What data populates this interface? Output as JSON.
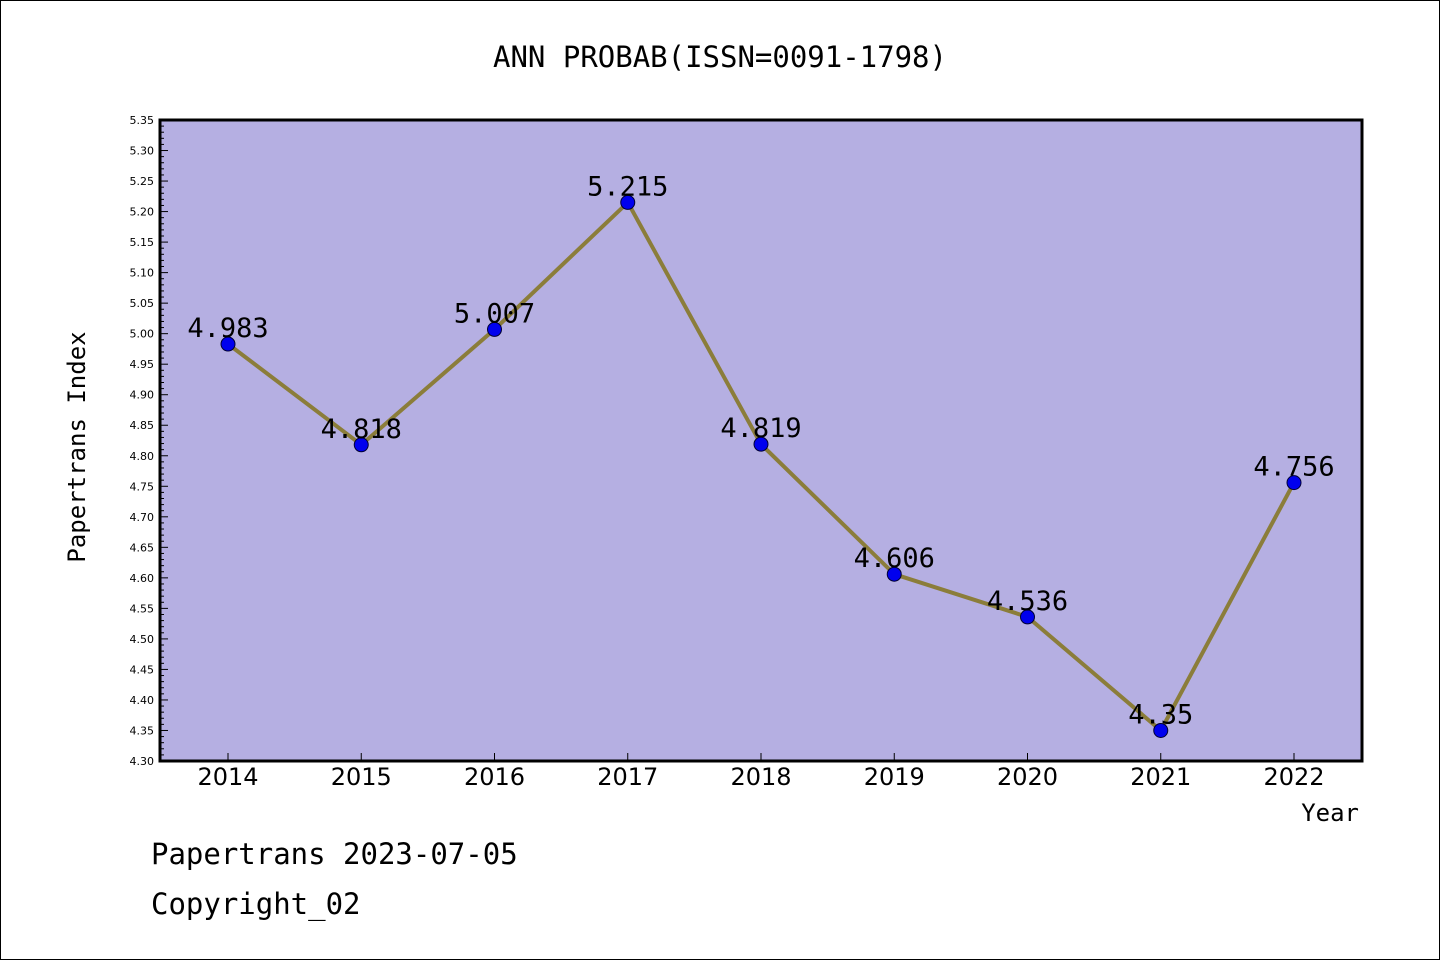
{
  "chart_data": {
    "type": "line",
    "title": "ANN PROBAB(ISSN=0091-1798)",
    "xlabel": "Year",
    "ylabel": "Papertrans Index",
    "x": [
      "2014",
      "2015",
      "2016",
      "2017",
      "2018",
      "2019",
      "2020",
      "2021",
      "2022"
    ],
    "values": [
      4.983,
      4.818,
      5.007,
      5.215,
      4.819,
      4.606,
      4.536,
      4.35,
      4.756
    ],
    "data_labels": [
      "4.983",
      "4.818",
      "5.007",
      "5.215",
      "4.819",
      "4.606",
      "4.536",
      "4.35",
      "4.756"
    ],
    "ylim": [
      4.3,
      5.35
    ],
    "yticks": [
      "4.30",
      "4.35",
      "4.40",
      "4.45",
      "4.50",
      "4.55",
      "4.60",
      "4.65",
      "4.70",
      "4.75",
      "4.80",
      "4.85",
      "4.90",
      "4.95",
      "5.00",
      "5.05",
      "5.10",
      "5.15",
      "5.20",
      "5.25",
      "5.30",
      "5.35"
    ],
    "grid": false,
    "colors": {
      "plot_background": "#b5afe2",
      "line": "#8b7d3a",
      "marker": "#0000ee"
    }
  },
  "footer": {
    "date_line": "Papertrans 2023-07-05",
    "copyright_line": "Copyright_02"
  }
}
